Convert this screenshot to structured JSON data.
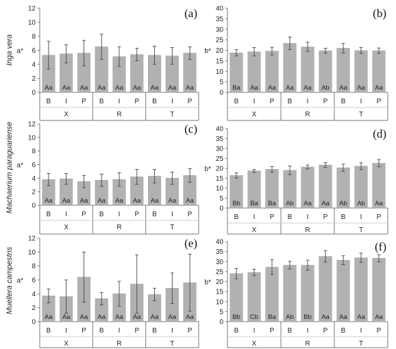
{
  "figure": {
    "row_labels": [
      "Inga vera",
      "Machaerium paraguariense",
      "Muellera campestris"
    ]
  },
  "colors": {
    "bar": "#b3b0b0",
    "bar_edge": "#a29f9f",
    "axis": "#777777",
    "error_bar": "#444444",
    "text": "#222222"
  },
  "chart_data": [
    {
      "panel_label": "(a)",
      "type": "bar",
      "ylabel": "a*",
      "ylim": [
        0,
        12
      ],
      "yticks": [
        0,
        2,
        4,
        6,
        8,
        10,
        12
      ],
      "categories": [
        "B",
        "I",
        "P",
        "B",
        "I",
        "P",
        "B",
        "I",
        "P"
      ],
      "groups": [
        "X",
        "R",
        "T"
      ],
      "values": [
        5.3,
        5.5,
        5.6,
        6.5,
        5.1,
        5.4,
        5.3,
        5.2,
        5.6
      ],
      "errors": [
        2.0,
        1.3,
        1.8,
        1.8,
        1.4,
        0.9,
        1.3,
        1.2,
        0.9
      ],
      "bar_labels": [
        "Aa",
        "Aa",
        "Aa",
        "Aa",
        "Aa",
        "Aa",
        "Aa",
        "Aa",
        "Aa"
      ]
    },
    {
      "panel_label": "(b)",
      "type": "bar",
      "ylabel": "b*",
      "ylim": [
        0,
        40
      ],
      "yticks": [
        0,
        5,
        10,
        15,
        20,
        25,
        30,
        35,
        40
      ],
      "categories": [
        "B",
        "I",
        "P",
        "B",
        "I",
        "P",
        "B",
        "I",
        "P"
      ],
      "groups": [
        "X",
        "R",
        "T"
      ],
      "values": [
        18.8,
        19.3,
        19.6,
        23.3,
        21.6,
        19.8,
        21.0,
        19.9,
        19.8
      ],
      "errors": [
        1.5,
        2.0,
        1.8,
        3.0,
        2.2,
        1.2,
        2.3,
        1.4,
        1.3
      ],
      "bar_labels": [
        "Ba",
        "Aa",
        "Aa",
        "Aa",
        "Aa",
        "Ab",
        "Aa",
        "Aa",
        "Aa"
      ]
    },
    {
      "panel_label": "(c)",
      "type": "bar",
      "ylabel": "a*",
      "ylim": [
        0,
        12
      ],
      "yticks": [
        0,
        2,
        4,
        6,
        8,
        10,
        12
      ],
      "categories": [
        "B",
        "I",
        "P",
        "B",
        "I",
        "P",
        "B",
        "I",
        "P"
      ],
      "groups": [
        "X",
        "R",
        "T"
      ],
      "values": [
        3.8,
        3.9,
        3.5,
        3.7,
        3.8,
        4.2,
        4.3,
        4.0,
        4.4
      ],
      "errors": [
        0.9,
        0.8,
        0.9,
        0.9,
        1.0,
        1.1,
        1.0,
        0.9,
        1.0
      ],
      "bar_labels": [
        "Aa",
        "Aa",
        "Aa",
        "Aa",
        "Aa",
        "Aa",
        "Aa",
        "Aa",
        "Aa"
      ]
    },
    {
      "panel_label": "(d)",
      "type": "bar",
      "ylabel": "b*",
      "ylim": [
        0,
        40
      ],
      "yticks": [
        0,
        5,
        10,
        15,
        20,
        25,
        30,
        35,
        40
      ],
      "categories": [
        "B",
        "I",
        "P",
        "B",
        "I",
        "P",
        "B",
        "I",
        "P"
      ],
      "groups": [
        "X",
        "R",
        "T"
      ],
      "values": [
        16.4,
        18.7,
        19.5,
        19.0,
        20.7,
        21.7,
        20.3,
        21.1,
        22.6
      ],
      "errors": [
        1.3,
        0.7,
        1.4,
        2.2,
        1.0,
        1.2,
        1.8,
        1.7,
        1.8
      ],
      "bar_labels": [
        "Bb",
        "Ba",
        "Ba",
        "Ab",
        "Aa",
        "Aa",
        "Ab",
        "Ab",
        "Aa"
      ]
    },
    {
      "panel_label": "(e)",
      "type": "bar",
      "ylabel": "a*",
      "ylim": [
        0,
        12
      ],
      "yticks": [
        0,
        2,
        4,
        6,
        8,
        10,
        12
      ],
      "categories": [
        "B",
        "I",
        "P",
        "B",
        "I",
        "P",
        "B",
        "I",
        "P"
      ],
      "groups": [
        "X",
        "R",
        "T"
      ],
      "values": [
        3.7,
        3.6,
        6.4,
        3.3,
        4.0,
        5.4,
        3.9,
        4.8,
        5.6
      ],
      "errors": [
        1.0,
        2.4,
        3.6,
        0.9,
        1.8,
        4.2,
        0.9,
        2.2,
        4.1
      ],
      "bar_labels": [
        "Aa",
        "Aa",
        "Aa",
        "Aa",
        "Aa",
        "Aa",
        "Aa",
        "Aa",
        "Aa"
      ]
    },
    {
      "panel_label": "(f)",
      "type": "bar",
      "ylabel": "b*",
      "ylim": [
        0,
        40
      ],
      "yticks": [
        0,
        5,
        10,
        15,
        20,
        25,
        30,
        35,
        40
      ],
      "categories": [
        "B",
        "I",
        "P",
        "B",
        "I",
        "P",
        "B",
        "I",
        "P"
      ],
      "groups": [
        "X",
        "R",
        "T"
      ],
      "values": [
        24.0,
        24.6,
        27.2,
        28.2,
        28.2,
        32.6,
        30.7,
        31.9,
        31.7
      ],
      "errors": [
        2.6,
        1.6,
        3.8,
        1.9,
        2.5,
        2.9,
        2.2,
        2.3,
        1.8
      ],
      "bar_labels": [
        "Bb",
        "Cb",
        "Ba",
        "Ab",
        "Bb",
        "Aa",
        "Aa",
        "Aa",
        "Aa"
      ]
    }
  ]
}
